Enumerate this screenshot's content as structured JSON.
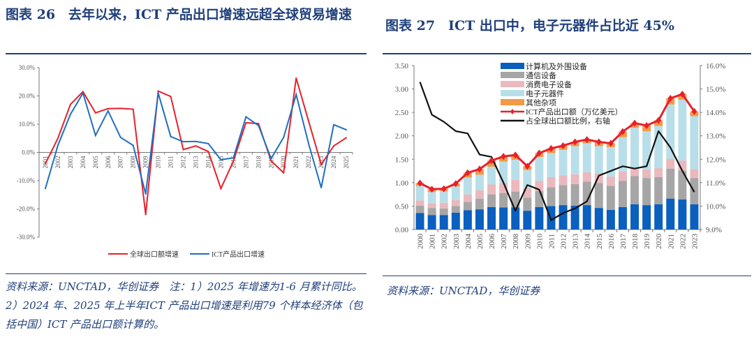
{
  "left": {
    "title": "图表 26　去年以来，ICT 产品出口增速远超全球贸易增速",
    "note": "资料来源：UNCTAD，华创证券　注：1）2025 年增速为1-6 月累计同比。2）2024 年、2025 年上半年ICT 产品出口增速是利用79 个样本经济体（包括中国）ICT 产品出口额计算的。"
  },
  "right": {
    "title": "图表 27　ICT 出口中，电子元器件占比近 45%",
    "note": "资料来源：UNCTAD，华创证券"
  },
  "chart_data": [
    {
      "type": "line",
      "legend": "bottom",
      "grid": false,
      "categories": [
        "2001",
        "2002",
        "2003",
        "2004",
        "2005",
        "2006",
        "2007",
        "2008",
        "2009",
        "2010",
        "2011",
        "2012",
        "2013",
        "2014",
        "2015",
        "2016",
        "2017",
        "2018",
        "2019",
        "2020",
        "2021",
        "2022",
        "2023",
        "2024",
        "2025"
      ],
      "yticks": [
        "30.0%",
        "20.0%",
        "10.0%",
        "0.0%",
        "-10.0%",
        "-20.0%",
        "-30.0%"
      ],
      "ylim": [
        -30,
        30
      ],
      "series": [
        {
          "name": "全球出口额增速",
          "color": "#e8202a",
          "values": [
            -4,
            5,
            17,
            21.5,
            14,
            15.5,
            15.6,
            15.3,
            -22,
            21.7,
            19.8,
            1,
            2.3,
            0.3,
            -12.8,
            -3,
            10.5,
            10.2,
            -3,
            -7.2,
            26.3,
            11,
            -4.3,
            2.3,
            5.2
          ]
        },
        {
          "name": "ICT产品出口增速",
          "color": "#1f6fc0",
          "values": [
            -12.8,
            2.5,
            13.5,
            21,
            6,
            14.7,
            5.3,
            2.5,
            -14.7,
            21,
            5.6,
            3.8,
            3.9,
            3.1,
            -2.6,
            -1.9,
            12.6,
            9.5,
            -2.2,
            5.3,
            20.5,
            3,
            -12.5,
            9.8,
            8
          ]
        }
      ]
    },
    {
      "type": "bar",
      "stacked": true,
      "legend": "top-center",
      "grid": false,
      "categories": [
        "2000",
        "2001",
        "2002",
        "2003",
        "2004",
        "2005",
        "2006",
        "2007",
        "2008",
        "2009",
        "2010",
        "2011",
        "2012",
        "2013",
        "2014",
        "2015",
        "2016",
        "2017",
        "2018",
        "2019",
        "2020",
        "2021",
        "2022",
        "2023"
      ],
      "yticks": [
        "3.50",
        "3.00",
        "2.50",
        "2.00",
        "1.50",
        "1.00",
        "0.50",
        "0.00"
      ],
      "ylim": [
        0,
        3.5
      ],
      "y2ticks": [
        "16.0%",
        "15.0%",
        "14.0%",
        "13.0%",
        "12.0%",
        "11.0%",
        "10.0%",
        "9.0%"
      ],
      "y2lim": [
        9,
        16
      ],
      "series": [
        {
          "name": "计算机及外围设备",
          "color": "#0a5fbf",
          "values": [
            0.35,
            0.31,
            0.31,
            0.36,
            0.41,
            0.43,
            0.48,
            0.47,
            0.47,
            0.4,
            0.48,
            0.5,
            0.52,
            0.51,
            0.52,
            0.46,
            0.42,
            0.48,
            0.54,
            0.52,
            0.54,
            0.66,
            0.64,
            0.54
          ]
        },
        {
          "name": "通信设备",
          "color": "#a6a6a6",
          "values": [
            0.16,
            0.15,
            0.14,
            0.14,
            0.18,
            0.23,
            0.27,
            0.31,
            0.34,
            0.28,
            0.34,
            0.4,
            0.43,
            0.46,
            0.5,
            0.53,
            0.51,
            0.56,
            0.6,
            0.58,
            0.58,
            0.64,
            0.62,
            0.56
          ]
        },
        {
          "name": "消费电子设备",
          "color": "#eab8bd",
          "values": [
            0.11,
            0.1,
            0.12,
            0.13,
            0.16,
            0.18,
            0.21,
            0.21,
            0.25,
            0.2,
            0.22,
            0.22,
            0.21,
            0.21,
            0.2,
            0.21,
            0.2,
            0.2,
            0.15,
            0.18,
            0.19,
            0.21,
            0.21,
            0.19
          ]
        },
        {
          "name": "电子元器件",
          "color": "#b8dfe9",
          "values": [
            0.31,
            0.24,
            0.25,
            0.29,
            0.36,
            0.33,
            0.38,
            0.46,
            0.43,
            0.39,
            0.51,
            0.51,
            0.54,
            0.6,
            0.62,
            0.58,
            0.63,
            0.73,
            0.88,
            0.82,
            0.9,
            1.16,
            1.3,
            1.13
          ]
        },
        {
          "name": "其他杂项",
          "color": "#f39a45",
          "values": [
            0.06,
            0.06,
            0.05,
            0.06,
            0.1,
            0.12,
            0.13,
            0.11,
            0.1,
            0.08,
            0.08,
            0.1,
            0.09,
            0.09,
            0.08,
            0.09,
            0.08,
            0.12,
            0.1,
            0.12,
            0.12,
            0.13,
            0.12,
            0.1
          ]
        },
        {
          "name": "ICT产品出口额（万亿美元）",
          "type": "line",
          "color": "#e8202a",
          "values": [
            0.99,
            0.86,
            0.87,
            0.98,
            1.21,
            1.29,
            1.47,
            1.56,
            1.59,
            1.35,
            1.63,
            1.73,
            1.79,
            1.87,
            1.92,
            1.87,
            1.84,
            2.09,
            2.27,
            2.22,
            2.33,
            2.8,
            2.89,
            2.52
          ]
        },
        {
          "name": "占全球出口额比例，右轴",
          "type": "line",
          "axis": "right",
          "color": "#111111",
          "values": [
            15.3,
            13.9,
            13.6,
            13.2,
            13.1,
            12.2,
            12.1,
            11.0,
            9.8,
            10.9,
            10.7,
            9.4,
            9.7,
            9.9,
            10.2,
            11.3,
            11.5,
            11.7,
            11.6,
            11.7,
            13.2,
            12.5,
            11.5,
            10.6
          ]
        }
      ]
    }
  ]
}
